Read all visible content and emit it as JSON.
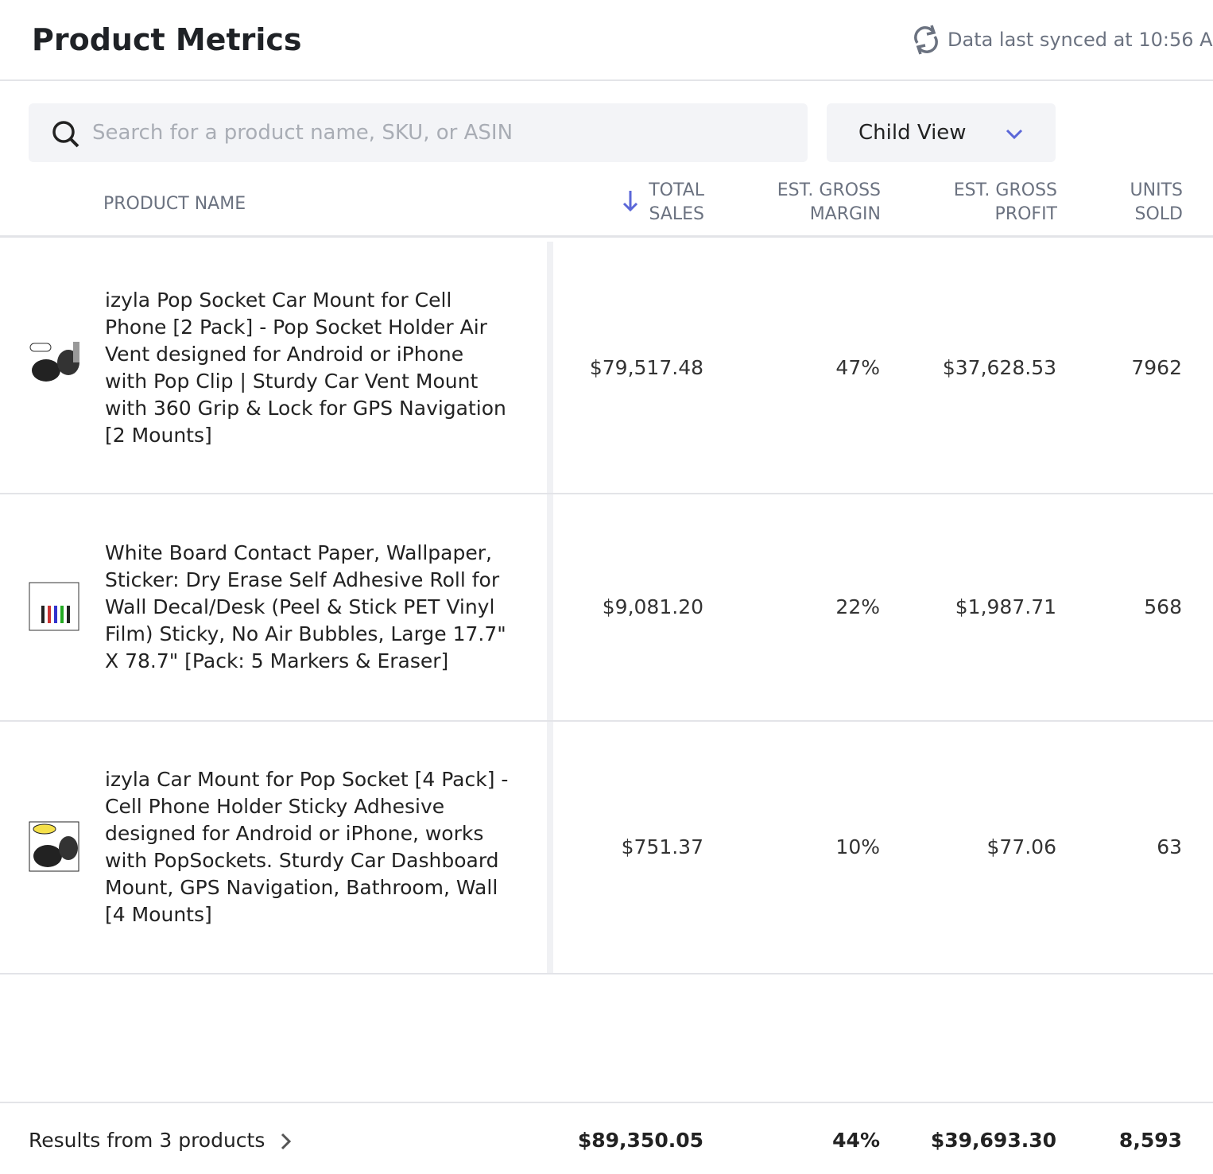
{
  "header": {
    "title": "Product Metrics",
    "sync_text": "Data last synced at 10:56 A"
  },
  "search": {
    "placeholder": "Search for a product name, SKU, or ASIN"
  },
  "view_select": {
    "label": "Child View"
  },
  "table": {
    "columns": [
      "PRODUCT NAME",
      "TOTAL SALES",
      "EST. GROSS MARGIN",
      "EST. GROSS PROFIT",
      "UNITS SOLD"
    ],
    "rows": [
      [
        "izyla Pop Socket Car Mount for Cell Phone [2 Pack] - Pop Socket Holder Air Vent designed for Android or iPhone with Pop Clip | Sturdy Car Vent Mount with 360 Grip & Lock for GPS Navigation [2 Mounts]",
        "$79,517.48",
        "47%",
        "$37,628.53",
        "7962"
      ],
      [
        "White Board Contact Paper, Wallpaper, Sticker: Dry Erase Self Adhesive Roll for Wall Decal/Desk (Peel & Stick PET Vinyl Film) Sticky, No Air Bubbles, Large 17.7\" X 78.7\" [Pack: 5 Markers & Eraser]",
        "$9,081.20",
        "22%",
        "$1,987.71",
        "568"
      ],
      [
        "izyla Car Mount for Pop Socket [4 Pack] - Cell Phone Holder Sticky Adhesive designed for Android or iPhone, works with PopSockets. Sturdy Car Dashboard Mount, GPS Navigation, Bathroom, Wall [4 Mounts]",
        "$751.37",
        "10%",
        "$77.06",
        "63"
      ]
    ],
    "footer": {
      "label": "Results from 3 products",
      "totals": [
        "$89,350.05",
        "44%",
        "$39,693.30",
        "8,593"
      ]
    }
  }
}
